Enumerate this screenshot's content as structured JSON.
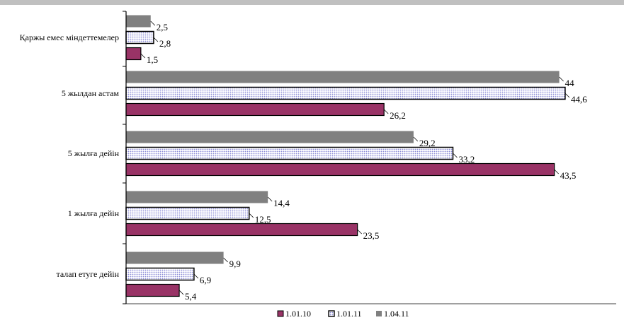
{
  "chart_data": {
    "type": "bar",
    "orientation": "horizontal",
    "title": "",
    "xlabel": "",
    "ylabel": "",
    "xlim": [
      0,
      45
    ],
    "grid": false,
    "legend_position": "bottom",
    "categories": [
      "талап етуге дейін",
      "1 жылға дейін",
      "5 жылға дейін",
      "5 жылдан астам",
      "Қаржы емес міндеттемелер"
    ],
    "series": [
      {
        "name": "1.01.10",
        "color": "#993366",
        "pattern": "solid",
        "values": [
          5.4,
          23.5,
          43.5,
          26.2,
          1.5
        ],
        "labels": [
          "5,4",
          "23,5",
          "43,5",
          "26,2",
          "1,5"
        ]
      },
      {
        "name": "1.01.11",
        "color": "#ccccff",
        "pattern": "dotted",
        "values": [
          6.9,
          12.5,
          33.2,
          44.6,
          2.8
        ],
        "labels": [
          "6,9",
          "12,5",
          "33,2",
          "44,6",
          "2,8"
        ]
      },
      {
        "name": "1.04.11",
        "color": "#808080",
        "pattern": "solid",
        "values": [
          9.9,
          14.4,
          29.2,
          44,
          2.5
        ],
        "labels": [
          "9,9",
          "14,4",
          "29,2",
          "44",
          "2,5"
        ]
      }
    ]
  }
}
